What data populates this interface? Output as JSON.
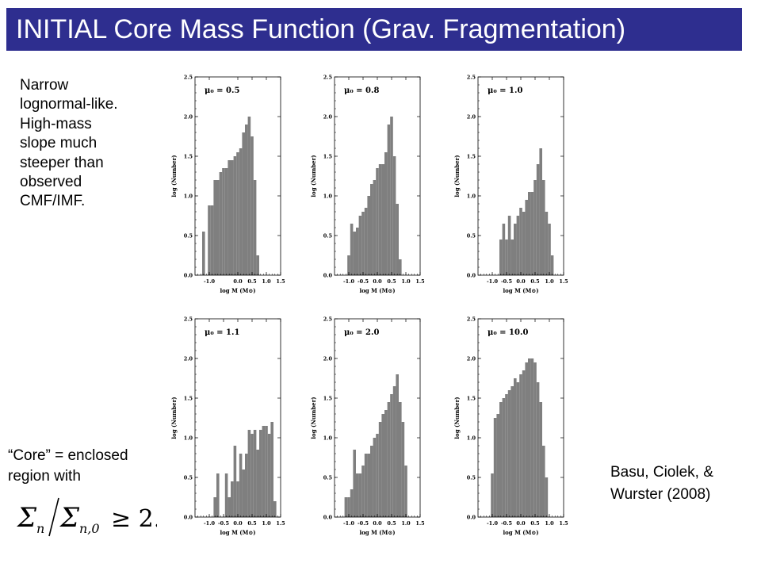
{
  "title": "INITIAL Core Mass Function (Grav. Fragmentation)",
  "colors": {
    "title_bg": "#2e2e8f",
    "title_text": "#ffffff",
    "bars": "#7f7f7f"
  },
  "left_note": [
    "Narrow",
    "lognormal-like.",
    "High-mass",
    "slope much",
    "steeper than",
    "observed",
    "CMF/IMF."
  ],
  "core_note": [
    "“Core” = enclosed",
    "region with"
  ],
  "formula": {
    "sigma_n": "Σ",
    "sub_n": "n",
    "sub_n0": "n,0",
    "relation": "≥ 2."
  },
  "citation": [
    "Basu, Ciolek, &",
    "Wurster (2008)"
  ],
  "chart_data": [
    {
      "type": "bar",
      "label": "μ₀ = 0.5",
      "xlabel": "log M (M⊙)",
      "ylabel": "log (Number)",
      "xlim": [
        -1.5,
        1.5
      ],
      "ylim": [
        0,
        2.5
      ],
      "xticks": [
        "-1.0",
        "0.0",
        "0.5",
        "1.0",
        "1.5"
      ],
      "yticks": [
        "0.0",
        "0.5",
        "1.0",
        "1.5",
        "2.0",
        "2.5"
      ],
      "x": [
        -1.2,
        -1.1,
        -1.0,
        -0.9,
        -0.8,
        -0.7,
        -0.6,
        -0.5,
        -0.4,
        -0.3,
        -0.2,
        -0.1,
        0.0,
        0.1,
        0.2,
        0.3,
        0.4,
        0.5,
        0.6,
        0.7,
        0.8
      ],
      "values": [
        0.55,
        0.0,
        0.88,
        0.88,
        1.2,
        1.2,
        1.3,
        1.35,
        1.35,
        1.45,
        1.45,
        1.5,
        1.55,
        1.6,
        1.8,
        1.9,
        2.0,
        1.75,
        1.2,
        0.25,
        0.0
      ],
      "bin_width": 0.1
    },
    {
      "type": "bar",
      "label": "μ₀ = 0.8",
      "xlabel": "log M (M⊙)",
      "ylabel": "log (Number)",
      "xlim": [
        -1.5,
        1.5
      ],
      "ylim": [
        0,
        2.5
      ],
      "xticks": [
        "-1.0",
        "-0.5",
        "0.0",
        "0.5",
        "1.0",
        "1.5"
      ],
      "yticks": [
        "0.0",
        "0.5",
        "1.0",
        "1.5",
        "2.0",
        "2.5"
      ],
      "x": [
        -1.2,
        -1.1,
        -1.0,
        -0.9,
        -0.8,
        -0.7,
        -0.6,
        -0.5,
        -0.4,
        -0.3,
        -0.2,
        -0.1,
        0.0,
        0.1,
        0.2,
        0.3,
        0.4,
        0.5,
        0.6,
        0.7,
        0.8
      ],
      "values": [
        0.0,
        0.0,
        0.25,
        0.65,
        0.55,
        0.6,
        0.75,
        0.8,
        0.85,
        1.0,
        1.15,
        1.2,
        1.35,
        1.4,
        1.4,
        1.55,
        1.9,
        2.0,
        1.5,
        0.9,
        0.2
      ],
      "bin_width": 0.1
    },
    {
      "type": "bar",
      "label": "μ₀ = 1.0",
      "xlabel": "log M (M⊙)",
      "ylabel": "log (Number)",
      "xlim": [
        -1.5,
        1.5
      ],
      "ylim": [
        0,
        2.5
      ],
      "xticks": [
        "-1.0",
        "-0.5",
        "0.0",
        "0.5",
        "1.0",
        "1.5"
      ],
      "yticks": [
        "0.0",
        "0.5",
        "1.0",
        "1.5",
        "2.0",
        "2.5"
      ],
      "x": [
        -0.7,
        -0.6,
        -0.5,
        -0.4,
        -0.3,
        -0.2,
        -0.1,
        0.0,
        0.1,
        0.2,
        0.3,
        0.4,
        0.5,
        0.6,
        0.7,
        0.8,
        0.9,
        1.0,
        1.1,
        1.2
      ],
      "values": [
        0.45,
        0.65,
        0.45,
        0.75,
        0.45,
        0.65,
        0.75,
        0.85,
        0.8,
        0.95,
        1.05,
        1.05,
        1.2,
        1.4,
        1.6,
        1.2,
        0.8,
        0.65,
        0.25,
        0.0
      ],
      "bin_width": 0.1
    },
    {
      "type": "bar",
      "label": "μ₀ = 1.1",
      "xlabel": "log M (M⊙)",
      "ylabel": "log (Number)",
      "xlim": [
        -1.5,
        1.5
      ],
      "ylim": [
        0,
        2.5
      ],
      "xticks": [
        "-1.0",
        "-0.5",
        "0.0",
        "0.5",
        "1.0",
        "1.5"
      ],
      "yticks": [
        "0.0",
        "0.5",
        "1.0",
        "1.5",
        "2.0",
        "2.5"
      ],
      "x": [
        -0.8,
        -0.7,
        -0.6,
        -0.5,
        -0.4,
        -0.3,
        -0.2,
        -0.1,
        0.0,
        0.1,
        0.2,
        0.3,
        0.4,
        0.5,
        0.6,
        0.7,
        0.8,
        0.9,
        1.0,
        1.1,
        1.2,
        1.3
      ],
      "values": [
        0.25,
        0.55,
        0.0,
        0.0,
        0.55,
        0.25,
        0.45,
        0.9,
        0.45,
        0.8,
        0.6,
        0.8,
        1.1,
        1.05,
        1.1,
        0.85,
        1.1,
        1.15,
        1.15,
        1.05,
        1.2,
        0.2
      ],
      "bin_width": 0.1
    },
    {
      "type": "bar",
      "label": "μ₀ = 2.0",
      "xlabel": "log M (M⊙)",
      "ylabel": "log (Number)",
      "xlim": [
        -1.5,
        1.5
      ],
      "ylim": [
        0,
        2.5
      ],
      "xticks": [
        "-1.0",
        "-0.5",
        "0.0",
        "0.5",
        "1.0",
        "1.5"
      ],
      "yticks": [
        "0.0",
        "0.5",
        "1.0",
        "1.5",
        "2.0",
        "2.5"
      ],
      "x": [
        -1.1,
        -1.0,
        -0.9,
        -0.8,
        -0.7,
        -0.6,
        -0.5,
        -0.4,
        -0.3,
        -0.2,
        -0.1,
        0.0,
        0.1,
        0.2,
        0.3,
        0.4,
        0.5,
        0.6,
        0.7,
        0.8,
        0.9,
        1.0
      ],
      "values": [
        0.25,
        0.25,
        0.35,
        0.85,
        0.55,
        0.55,
        0.65,
        0.8,
        0.8,
        0.9,
        1.0,
        1.05,
        1.2,
        1.3,
        1.35,
        1.45,
        1.55,
        1.65,
        1.8,
        1.45,
        1.2,
        0.65
      ],
      "bin_width": 0.1
    },
    {
      "type": "bar",
      "label": "μ₀ = 10.0",
      "xlabel": "log M (M⊙)",
      "ylabel": "log (Number)",
      "xlim": [
        -1.5,
        1.5
      ],
      "ylim": [
        0,
        2.5
      ],
      "xticks": [
        "-1.0",
        "-0.5",
        "0.0",
        "0.5",
        "1.0",
        "1.5"
      ],
      "yticks": [
        "0.0",
        "0.5",
        "1.0",
        "1.5",
        "2.0",
        "2.5"
      ],
      "x": [
        -1.0,
        -0.9,
        -0.8,
        -0.7,
        -0.6,
        -0.5,
        -0.4,
        -0.3,
        -0.2,
        -0.1,
        0.0,
        0.1,
        0.2,
        0.3,
        0.4,
        0.5,
        0.6,
        0.7,
        0.8,
        0.9
      ],
      "values": [
        0.55,
        1.25,
        1.3,
        1.45,
        1.5,
        1.55,
        1.6,
        1.65,
        1.75,
        1.7,
        1.8,
        1.85,
        1.95,
        2.0,
        2.0,
        1.95,
        1.7,
        1.45,
        0.9,
        0.5
      ],
      "bin_width": 0.1
    }
  ]
}
